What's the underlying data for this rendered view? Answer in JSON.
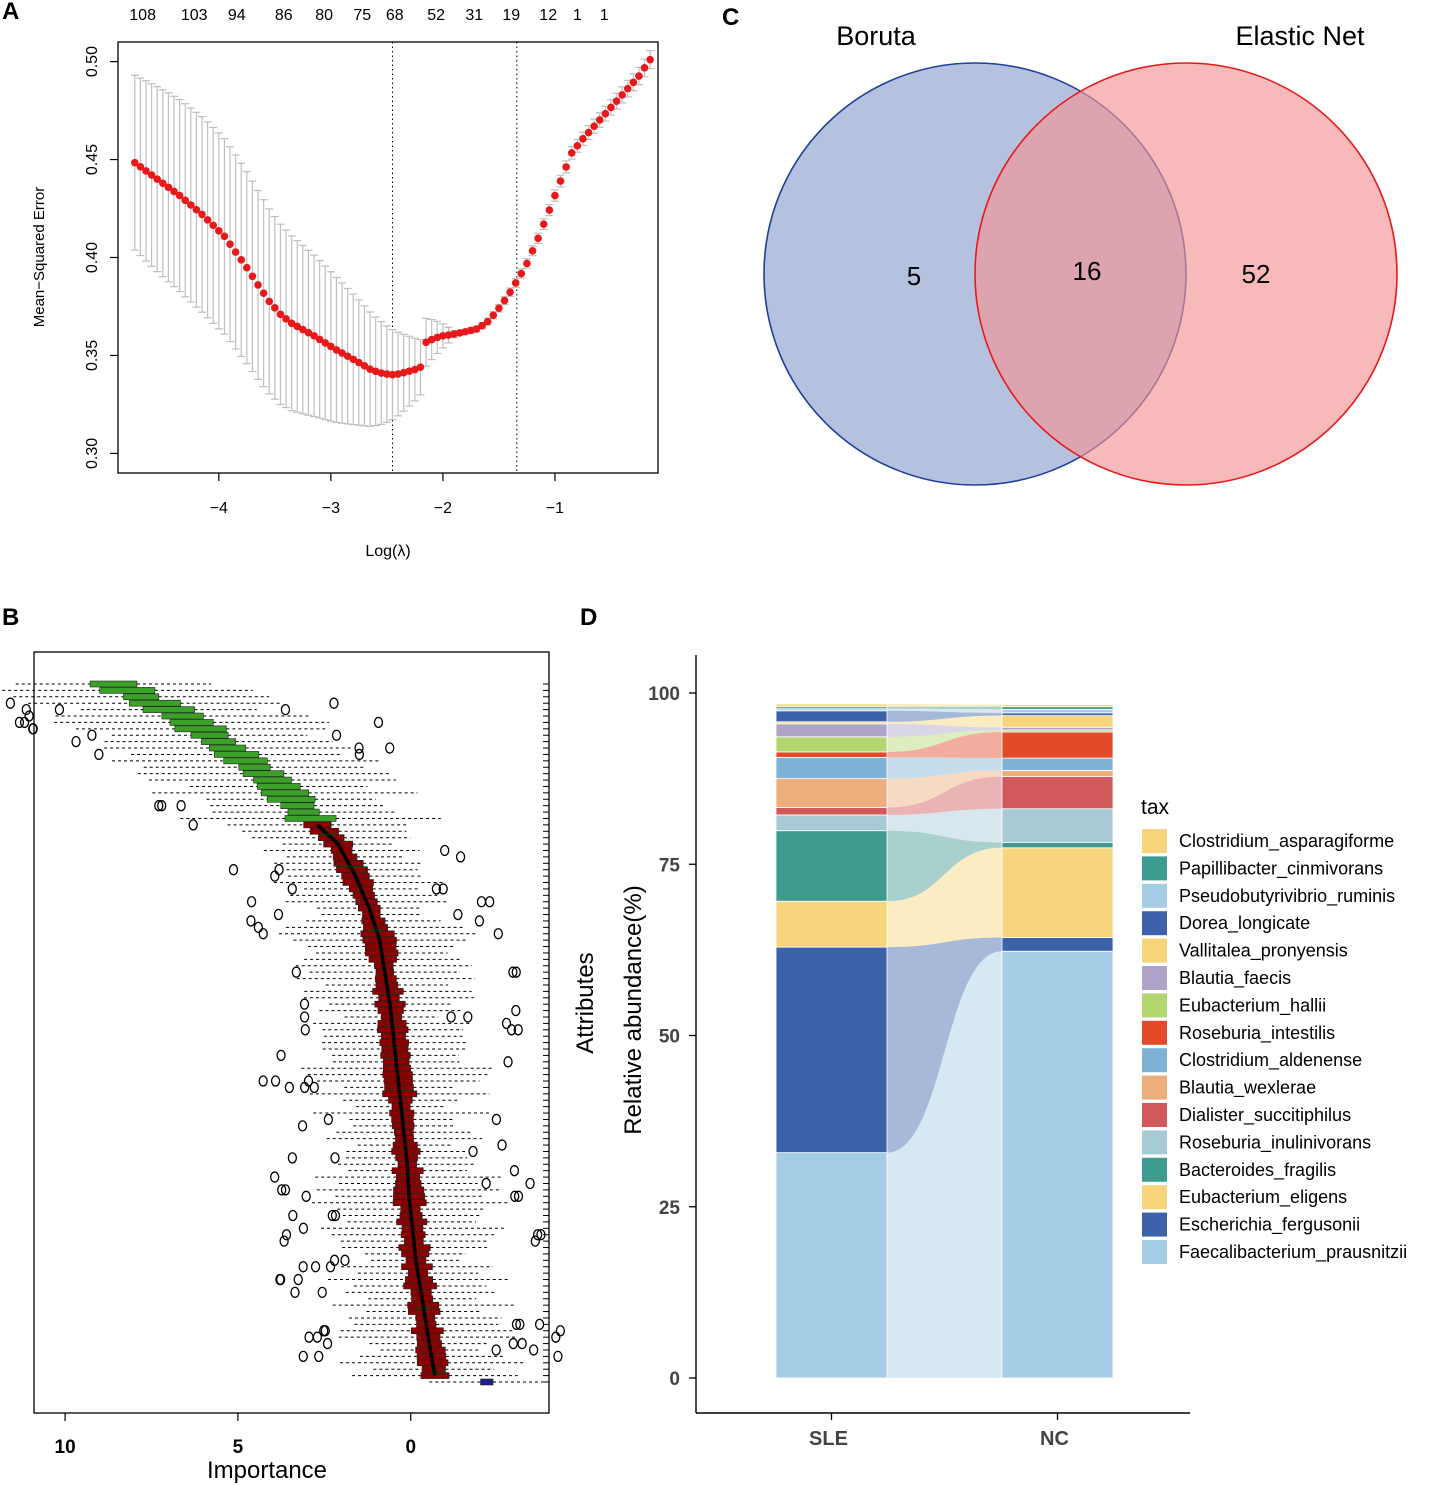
{
  "panels": {
    "A": "A",
    "B": "B",
    "C": "C",
    "D": "D"
  },
  "chart_data": [
    {
      "id": "A",
      "type": "scatter",
      "title": "",
      "xlabel": "Log(λ)",
      "ylabel": "Mean−Squared Error",
      "xlim": [
        -4.9,
        -0.08
      ],
      "ylim": [
        0.29,
        0.51
      ],
      "x_ticks": [
        -4,
        -3,
        -2,
        -1
      ],
      "x_tick_labels": [
        "−4",
        "−3",
        "−2",
        "−1"
      ],
      "y_ticks": [
        0.3,
        0.35,
        0.4,
        0.45,
        0.5
      ],
      "y_tick_labels": [
        "0.30",
        "0.35",
        "0.40",
        "0.45",
        "0.50"
      ],
      "top_axis_labels": [
        "108",
        "103",
        "94",
        "86",
        "80",
        "75",
        "68",
        "52",
        "31",
        "19",
        "12",
        "1",
        "1"
      ],
      "top_axis_x": [
        -4.68,
        -4.22,
        -3.84,
        -3.42,
        -3.06,
        -2.72,
        -2.43,
        -2.06,
        -1.72,
        -1.39,
        -1.06,
        -0.8,
        -0.56
      ],
      "vlines": [
        -2.45,
        -1.34
      ],
      "series": {
        "x": [
          -4.75,
          -4.7,
          -4.65,
          -4.6,
          -4.55,
          -4.5,
          -4.45,
          -4.4,
          -4.35,
          -4.3,
          -4.25,
          -4.2,
          -4.15,
          -4.1,
          -4.05,
          -4.0,
          -3.95,
          -3.9,
          -3.85,
          -3.8,
          -3.75,
          -3.7,
          -3.65,
          -3.6,
          -3.55,
          -3.5,
          -3.45,
          -3.4,
          -3.35,
          -3.3,
          -3.25,
          -3.2,
          -3.15,
          -3.1,
          -3.05,
          -3.0,
          -2.95,
          -2.9,
          -2.85,
          -2.8,
          -2.75,
          -2.7,
          -2.65,
          -2.6,
          -2.55,
          -2.5,
          -2.45,
          -2.4,
          -2.35,
          -2.3,
          -2.25,
          -2.2,
          -2.15,
          -2.1,
          -2.05,
          -2.0,
          -1.95,
          -1.9,
          -1.85,
          -1.8,
          -1.75,
          -1.7,
          -1.65,
          -1.6,
          -1.55,
          -1.5,
          -1.45,
          -1.4,
          -1.35,
          -1.3,
          -1.25,
          -1.2,
          -1.15,
          -1.1,
          -1.05,
          -1.0,
          -0.95,
          -0.9,
          -0.85,
          -0.8,
          -0.75,
          -0.7,
          -0.65,
          -0.6,
          -0.55,
          -0.5,
          -0.45,
          -0.4,
          -0.35,
          -0.3,
          -0.25,
          -0.2,
          -0.15
        ],
        "mse": [
          0.4484,
          0.4463,
          0.4442,
          0.4421,
          0.44,
          0.4379,
          0.4358,
          0.4337,
          0.4316,
          0.4292,
          0.4268,
          0.4244,
          0.422,
          0.4192,
          0.4164,
          0.4136,
          0.4108,
          0.4068,
          0.4028,
          0.3988,
          0.3948,
          0.3904,
          0.386,
          0.3818,
          0.3776,
          0.3743,
          0.371,
          0.3687,
          0.3664,
          0.3648,
          0.3632,
          0.3616,
          0.36,
          0.3582,
          0.3564,
          0.3546,
          0.3528,
          0.3512,
          0.3496,
          0.348,
          0.3464,
          0.3447,
          0.343,
          0.3419,
          0.341,
          0.3405,
          0.3402,
          0.3405,
          0.3412,
          0.342,
          0.3428,
          0.344,
          0.3567,
          0.3581,
          0.3592,
          0.36,
          0.3604,
          0.3609,
          0.3615,
          0.3621,
          0.3628,
          0.3635,
          0.3652,
          0.3673,
          0.3705,
          0.3741,
          0.378,
          0.3823,
          0.387,
          0.3918,
          0.397,
          0.4034,
          0.4098,
          0.417,
          0.4242,
          0.4316,
          0.439,
          0.4462,
          0.4534,
          0.457,
          0.4606,
          0.4638,
          0.467,
          0.4702,
          0.4734,
          0.4766,
          0.4798,
          0.483,
          0.4862,
          0.4894,
          0.4926,
          0.4968,
          0.501
        ],
        "err": [
          0.0446,
          0.0453,
          0.046,
          0.0466,
          0.0472,
          0.0477,
          0.0482,
          0.0486,
          0.049,
          0.0493,
          0.0495,
          0.0497,
          0.0499,
          0.05,
          0.05,
          0.05,
          0.0499,
          0.0497,
          0.0495,
          0.0493,
          0.049,
          0.0486,
          0.0482,
          0.0477,
          0.0472,
          0.0466,
          0.046,
          0.0453,
          0.0446,
          0.0438,
          0.043,
          0.0421,
          0.0412,
          0.0402,
          0.0392,
          0.0381,
          0.037,
          0.0358,
          0.0346,
          0.0333,
          0.032,
          0.0306,
          0.0292,
          0.0277,
          0.0262,
          0.0246,
          0.023,
          0.0213,
          0.0196,
          0.0178,
          0.016,
          0.0141,
          0.0122,
          0.0102,
          0.0082,
          0.0061,
          0.004,
          0.0018,
          0.0012,
          0.0013,
          0.0014,
          0.0015,
          0.0016,
          0.0017,
          0.0018,
          0.0019,
          0.002,
          0.0021,
          0.0022,
          0.0023,
          0.0024,
          0.0025,
          0.0026,
          0.0027,
          0.0028,
          0.0029,
          0.003,
          0.0031,
          0.0032,
          0.0033,
          0.0034,
          0.0035,
          0.0036,
          0.0037,
          0.0038,
          0.0039,
          0.004,
          0.0041,
          0.0042,
          0.0043,
          0.0044,
          0.0045,
          0.0046
        ]
      },
      "marker_color": "#e8191b",
      "errorbar_color": "#bfbfbf"
    },
    {
      "id": "B",
      "type": "box",
      "title": "",
      "xlabel": "Importance",
      "ylabel": "Attributes",
      "x_reversed": true,
      "xlim": [
        10.9,
        -4.0
      ],
      "x_ticks": [
        10,
        5,
        0
      ],
      "x_tick_labels": [
        "10",
        "5",
        "0"
      ],
      "n_attributes": 110,
      "median_curve": {
        "rank": [
          1,
          6,
          11,
          16,
          21,
          26,
          31,
          36,
          41,
          46,
          51,
          56,
          61,
          66,
          71,
          76,
          81,
          86,
          91,
          96,
          101,
          106,
          109,
          110
        ],
        "median": [
          8.6,
          6.6,
          5.3,
          4.0,
          3.1,
          2.1,
          1.6,
          1.2,
          0.9,
          0.75,
          0.6,
          0.5,
          0.4,
          0.3,
          0.2,
          0.1,
          0.05,
          -0.05,
          -0.15,
          -0.3,
          -0.45,
          -0.6,
          -0.7,
          -2.2
        ]
      },
      "colors": {
        "confirmed": "#3aa028",
        "rejected": "#8b0000",
        "shadow": "#1f1f8a"
      }
    },
    {
      "id": "C",
      "type": "venn",
      "sets": [
        {
          "name": "Boruta",
          "color": "#8da2ce",
          "stroke": "#1f3f9a"
        },
        {
          "name": "Elastic Net",
          "color": "#f39495",
          "stroke": "#e8191b"
        }
      ],
      "counts": {
        "only_a": "5",
        "both": "16",
        "only_b": "52"
      }
    },
    {
      "id": "D",
      "type": "bar",
      "stacked": true,
      "alluvial": true,
      "xlabel": "",
      "ylabel": "Relative abundance(%)",
      "ylim": [
        0,
        100
      ],
      "y_ticks": [
        0,
        25,
        50,
        75,
        100
      ],
      "y_tick_labels": [
        "0",
        "25",
        "50",
        "75",
        "100"
      ],
      "categories": [
        "SLE",
        "NC"
      ],
      "legend_title": "tax",
      "series": [
        {
          "name": "Faecalibacterium_prausnitzii",
          "color": "#a5cde6",
          "values": [
            32.9,
            62.3
          ]
        },
        {
          "name": "Escherichia_fergusonii",
          "color": "#3c63aa",
          "values": [
            30.0,
            2.0
          ]
        },
        {
          "name": "Eubacterium_eligens",
          "color": "#f6d57c",
          "values": [
            6.7,
            13.1
          ]
        },
        {
          "name": "Bacteroides_fragilis",
          "color": "#3f9a90",
          "values": [
            10.3,
            0.8
          ]
        },
        {
          "name": "Roseburia_inulinivorans",
          "color": "#a8c9d6",
          "values": [
            2.3,
            4.9
          ]
        },
        {
          "name": "Dialister_succitiphilus",
          "color": "#d1595c",
          "values": [
            1.1,
            4.7
          ]
        },
        {
          "name": "Blautia_wexlerae",
          "color": "#ebae7c",
          "values": [
            4.2,
            0.9
          ]
        },
        {
          "name": "Clostridium_aldenense",
          "color": "#7eb3d6",
          "values": [
            3.1,
            1.8
          ]
        },
        {
          "name": "Roseburia_intestilis",
          "color": "#e34a2a",
          "values": [
            0.8,
            3.8
          ]
        },
        {
          "name": "Eubacterium_hallii",
          "color": "#b4d670",
          "values": [
            2.2,
            0.3
          ]
        },
        {
          "name": "Blautia_faecis",
          "color": "#b0a3c8",
          "values": [
            1.9,
            0.4
          ]
        },
        {
          "name": "Vallitalea_pronyensis",
          "color": "#f6d57c",
          "values": [
            0.3,
            1.7
          ]
        },
        {
          "name": "Dorea_longicate",
          "color": "#3c63aa",
          "values": [
            1.6,
            0.4
          ]
        },
        {
          "name": "Pseudobutyrivibrio_ruminis",
          "color": "#a5cde6",
          "values": [
            0.3,
            0.5
          ]
        },
        {
          "name": "Papillibacter_cinmivorans",
          "color": "#3f9a90",
          "values": [
            0.3,
            0.4
          ]
        },
        {
          "name": "Clostridium_asparagiforme",
          "color": "#f6d57c",
          "values": [
            0.4,
            0.3
          ]
        }
      ]
    }
  ]
}
